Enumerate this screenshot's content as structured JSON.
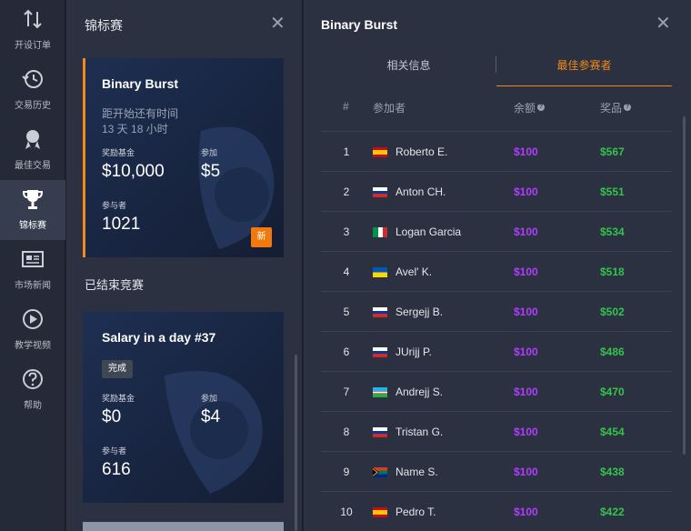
{
  "nav": {
    "items": [
      {
        "icon": "arrows-icon",
        "label": "开设订单"
      },
      {
        "icon": "history-icon",
        "label": "交易历史"
      },
      {
        "icon": "medal-icon",
        "label": "最佳交易"
      },
      {
        "icon": "trophy-icon",
        "label": "锦标赛"
      },
      {
        "icon": "news-icon",
        "label": "市场新闻"
      },
      {
        "icon": "play-icon",
        "label": "教学视频"
      },
      {
        "icon": "help-icon",
        "label": "帮助"
      }
    ],
    "active": "锦标赛"
  },
  "tournaments": {
    "title": "锦标赛",
    "active_card": {
      "name": "Binary Burst",
      "countdown_label": "距开始还有时间",
      "countdown_value": "13 天 18 小时",
      "prize_label": "奖励基金",
      "prize_value": "$10,000",
      "fee_label": "参加",
      "fee_value": "$5",
      "participants_label": "参与者",
      "participants_value": "1021",
      "badge": "新"
    },
    "ended_title": "已结束竞赛",
    "ended_card": {
      "name": "Salary in a day #37",
      "badge": "完成",
      "prize_label": "奖励基金",
      "prize_value": "$0",
      "fee_label": "参加",
      "fee_value": "$4",
      "participants_label": "参与者",
      "participants_value": "616"
    }
  },
  "leaderboard": {
    "title": "Binary Burst",
    "tabs": [
      "相关信息",
      "最佳参赛者"
    ],
    "active_tab": "最佳参赛者",
    "columns": {
      "rank": "#",
      "participant": "参加者",
      "balance": "余额",
      "prize": "奖品"
    },
    "help_glyph": "?",
    "rows": [
      {
        "rank": "1",
        "flag": "es",
        "name": "Roberto E.",
        "balance": "$100",
        "prize": "$567"
      },
      {
        "rank": "2",
        "flag": "ru",
        "name": "Anton CH.",
        "balance": "$100",
        "prize": "$551"
      },
      {
        "rank": "3",
        "flag": "it",
        "name": "Logan Garcia",
        "balance": "$100",
        "prize": "$534"
      },
      {
        "rank": "4",
        "flag": "ua",
        "name": "Avel' K.",
        "balance": "$100",
        "prize": "$518"
      },
      {
        "rank": "5",
        "flag": "ru",
        "name": "Sergejj B.",
        "balance": "$100",
        "prize": "$502"
      },
      {
        "rank": "6",
        "flag": "ru",
        "name": "JUrijj P.",
        "balance": "$100",
        "prize": "$486"
      },
      {
        "rank": "7",
        "flag": "uz",
        "name": "Andrejj S.",
        "balance": "$100",
        "prize": "$470"
      },
      {
        "rank": "8",
        "flag": "ru",
        "name": "Tristan G.",
        "balance": "$100",
        "prize": "$454"
      },
      {
        "rank": "9",
        "flag": "za",
        "name": "Name S.",
        "balance": "$100",
        "prize": "$438"
      },
      {
        "rank": "10",
        "flag": "es",
        "name": "Pedro T.",
        "balance": "$100",
        "prize": "$422"
      }
    ]
  },
  "colors": {
    "accent": "#f28a1a",
    "balance": "#b13cff",
    "prize": "#33c44b"
  }
}
